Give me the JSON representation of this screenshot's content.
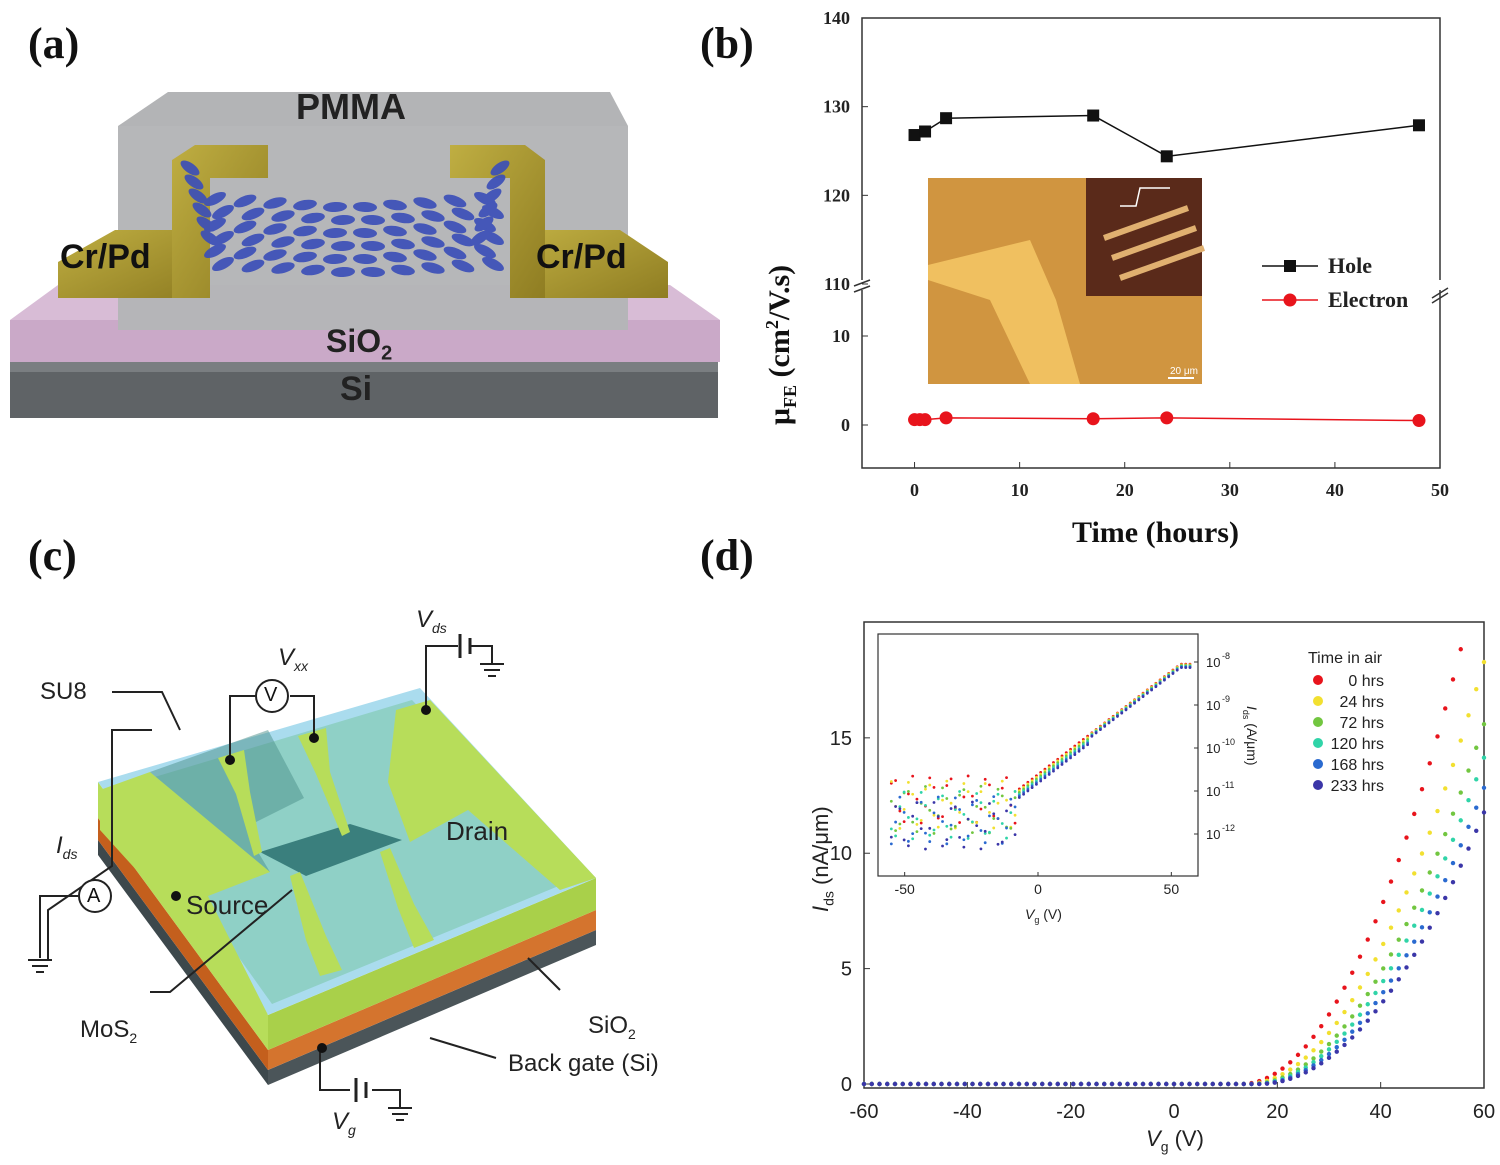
{
  "panels": {
    "a": {
      "label": "(a)",
      "pmma": "PMMA",
      "contact_left": "Cr/Pd",
      "contact_right": "Cr/Pd",
      "oxide": "SiO",
      "oxide_sub": "2",
      "substrate": "Si"
    },
    "b": {
      "label": "(b)",
      "ylabel_main": "μ",
      "ylabel_sub": "FE",
      "ylabel_units_pre": " (cm",
      "ylabel_units_sup": "2",
      "ylabel_units_post": "/V.s)",
      "xlabel": "Time (hours)",
      "inset_scale_text": "20 μm"
    },
    "c": {
      "label": "(c)",
      "su8": "SU8",
      "vxx": "V",
      "vxx_sub": "xx",
      "vds": "V",
      "vds_sub": "ds",
      "ids": "I",
      "ids_sub": "ds",
      "source": "Source",
      "drain": "Drain",
      "mos2": "MoS",
      "mos2_sub": "2",
      "sio2": "SiO",
      "sio2_sub": "2",
      "backgate": "Back gate (Si)",
      "vg": "V",
      "vg_sub": "g",
      "meter_v": "V",
      "meter_a": "A"
    },
    "d": {
      "label": "(d)",
      "ylabel": "I",
      "ylabel_sub": "ds",
      "ylabel_units": " (nA/μm)",
      "xlabel": "V",
      "xlabel_sub": "g",
      "xlabel_units": " (V)",
      "legend_title": "Time in air",
      "inset_xlabel": "V",
      "inset_xlabel_sub": "g",
      "inset_xlabel_units": " (V)",
      "inset_ylabel": "I",
      "inset_ylabel_sub": "ds",
      "inset_ylabel_units": " (A/μm)"
    }
  },
  "chart_data": [
    {
      "type": "line",
      "panel": "b",
      "title": "",
      "xlabel": "Time (hours)",
      "ylabel": "μFE (cm2/V.s)",
      "x_ticks": [
        0,
        10,
        20,
        30,
        40,
        50
      ],
      "xlim": [
        -5,
        50
      ],
      "y_ticks_upper": [
        110,
        120,
        130,
        140
      ],
      "y_ticks_lower": [
        0,
        10
      ],
      "broken_axis": true,
      "legend_placement": "right",
      "series": [
        {
          "name": "Hole",
          "color": "#111111",
          "marker": "square",
          "x": [
            0,
            1,
            3,
            17,
            24,
            48
          ],
          "y": [
            126.8,
            127.2,
            128.7,
            129.0,
            124.4,
            127.9
          ]
        },
        {
          "name": "Electron",
          "color": "#e8141c",
          "marker": "circle",
          "x": [
            0,
            0.5,
            1,
            3,
            17,
            24,
            48
          ],
          "y": [
            0.6,
            0.6,
            0.6,
            0.8,
            0.7,
            0.8,
            0.5
          ]
        }
      ]
    },
    {
      "type": "scatter",
      "panel": "d",
      "title": "",
      "xlabel": "Vg (V)",
      "ylabel": "Ids (nA/μm)",
      "x_ticks": [
        -60,
        -40,
        -20,
        0,
        20,
        40,
        60
      ],
      "y_ticks": [
        0,
        5,
        10,
        15
      ],
      "xlim": [
        -60,
        60
      ],
      "ylim": [
        -0.5,
        20
      ],
      "legend_title": "Time in air",
      "series": [
        {
          "name": "0 hrs",
          "color": "#e8141c",
          "Vth": 13,
          "k": 0.01043
        },
        {
          "name": "24 hrs",
          "color": "#f2e030",
          "Vth": 14,
          "k": 0.00864
        },
        {
          "name": "72 hrs",
          "color": "#72c640",
          "Vth": 15,
          "k": 0.0077
        },
        {
          "name": "120 hrs",
          "color": "#30d4a8",
          "Vth": 15.5,
          "k": 0.00714
        },
        {
          "name": "168 hrs",
          "color": "#2a6ad0",
          "Vth": 16,
          "k": 0.00663
        },
        {
          "name": "233 hrs",
          "color": "#3b36a8",
          "Vth": 16.5,
          "k": 0.00622
        }
      ],
      "inset": {
        "xlabel": "Vg (V)",
        "ylabel": "Ids (A/μm)",
        "x_ticks": [
          -50,
          0,
          50
        ],
        "y_tick_exponents": [
          -8,
          -9,
          -10,
          -11,
          -12
        ],
        "y_tick_base": "10"
      }
    }
  ]
}
